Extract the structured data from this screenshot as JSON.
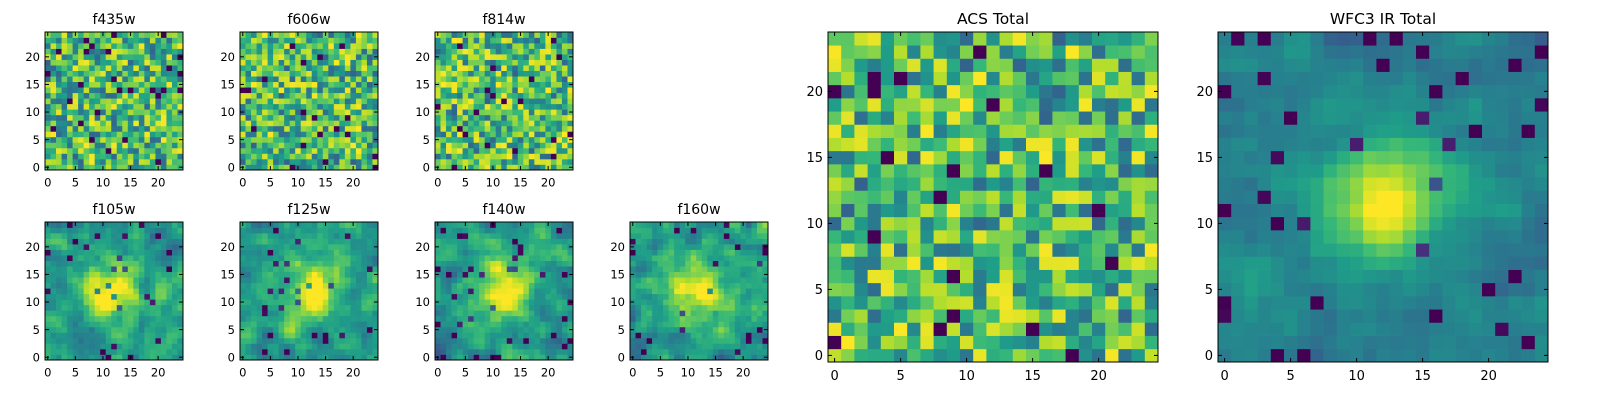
{
  "chart_data": [
    {
      "type": "heatmap",
      "title": "f435w",
      "xticks": [
        "0",
        "5",
        "10",
        "15",
        "20"
      ],
      "yticks": [
        "0",
        "5",
        "10",
        "15",
        "20"
      ],
      "xlim": [
        -0.5,
        24.5
      ],
      "ylim": [
        -0.5,
        24.5
      ],
      "grid_size": [
        25,
        25
      ],
      "colormap": "viridis",
      "pattern": "uniform noise",
      "seed": 11
    },
    {
      "type": "heatmap",
      "title": "f606w",
      "xticks": [
        "0",
        "5",
        "10",
        "15",
        "20"
      ],
      "yticks": [
        "0",
        "5",
        "10",
        "15",
        "20"
      ],
      "xlim": [
        -0.5,
        24.5
      ],
      "ylim": [
        -0.5,
        24.5
      ],
      "grid_size": [
        25,
        25
      ],
      "colormap": "viridis",
      "pattern": "uniform noise",
      "seed": 22
    },
    {
      "type": "heatmap",
      "title": "f814w",
      "xticks": [
        "0",
        "5",
        "10",
        "15",
        "20"
      ],
      "yticks": [
        "0",
        "5",
        "10",
        "15",
        "20"
      ],
      "xlim": [
        -0.5,
        24.5
      ],
      "ylim": [
        -0.5,
        24.5
      ],
      "grid_size": [
        25,
        25
      ],
      "colormap": "viridis",
      "pattern": "uniform noise",
      "seed": 33
    },
    {
      "type": "heatmap",
      "title": "f105w",
      "xticks": [
        "0",
        "5",
        "10",
        "15",
        "20"
      ],
      "yticks": [
        "0",
        "5",
        "10",
        "15",
        "20"
      ],
      "xlim": [
        -0.5,
        24.5
      ],
      "ylim": [
        -0.5,
        24.5
      ],
      "grid_size": [
        25,
        25
      ],
      "colormap": "viridis",
      "pattern": "noise with central peak near (12,12)",
      "seed": 44
    },
    {
      "type": "heatmap",
      "title": "f125w",
      "xticks": [
        "0",
        "5",
        "10",
        "15",
        "20"
      ],
      "yticks": [
        "0",
        "5",
        "10",
        "15",
        "20"
      ],
      "xlim": [
        -0.5,
        24.5
      ],
      "ylim": [
        -0.5,
        24.5
      ],
      "grid_size": [
        25,
        25
      ],
      "colormap": "viridis",
      "pattern": "noise with broad central peak",
      "seed": 55
    },
    {
      "type": "heatmap",
      "title": "f140w",
      "xticks": [
        "0",
        "5",
        "10",
        "15",
        "20"
      ],
      "yticks": [
        "0",
        "5",
        "10",
        "15",
        "20"
      ],
      "xlim": [
        -0.5,
        24.5
      ],
      "ylim": [
        -0.5,
        24.5
      ],
      "grid_size": [
        25,
        25
      ],
      "colormap": "viridis",
      "pattern": "noise with central peak",
      "seed": 66
    },
    {
      "type": "heatmap",
      "title": "f160w",
      "xticks": [
        "0",
        "5",
        "10",
        "15",
        "20"
      ],
      "yticks": [
        "0",
        "5",
        "10",
        "15",
        "20"
      ],
      "xlim": [
        -0.5,
        24.5
      ],
      "ylim": [
        -0.5,
        24.5
      ],
      "grid_size": [
        25,
        25
      ],
      "colormap": "viridis",
      "pattern": "noise with central peak",
      "seed": 77
    },
    {
      "type": "heatmap",
      "title": "ACS Total",
      "xticks": [
        "0",
        "5",
        "10",
        "15",
        "20"
      ],
      "yticks": [
        "0",
        "5",
        "10",
        "15",
        "20"
      ],
      "xlim": [
        -0.5,
        24.5
      ],
      "ylim": [
        -0.5,
        24.5
      ],
      "grid_size": [
        25,
        25
      ],
      "colormap": "viridis",
      "pattern": "uniform noise",
      "seed": 88
    },
    {
      "type": "heatmap",
      "title": "WFC3 IR Total",
      "xticks": [
        "0",
        "5",
        "10",
        "15",
        "20"
      ],
      "yticks": [
        "0",
        "5",
        "10",
        "15",
        "20"
      ],
      "xlim": [
        -0.5,
        24.5
      ],
      "ylim": [
        -0.5,
        24.5
      ],
      "grid_size": [
        25,
        25
      ],
      "colormap": "viridis",
      "pattern": "smooth with strong central peak near (12,12)",
      "seed": 99
    }
  ]
}
